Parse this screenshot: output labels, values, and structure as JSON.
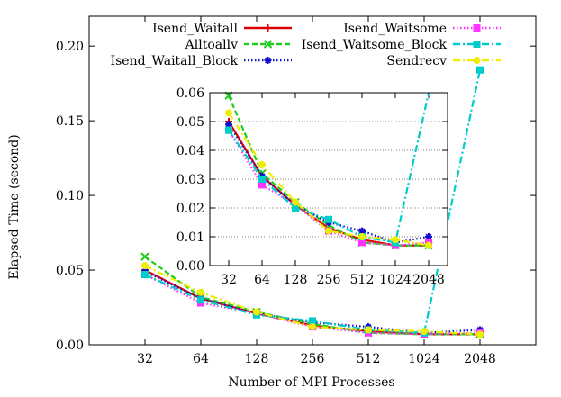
{
  "chart_data": [
    {
      "type": "line",
      "xlabel": "Number of MPI Processes",
      "ylabel": "Elapsed Time (second)",
      "x": [
        "32",
        "64",
        "128",
        "256",
        "512",
        "1024",
        "2048"
      ],
      "ylim": [
        0,
        0.22
      ],
      "yticks": [
        "0.00",
        "0.05",
        "0.10",
        "0.15",
        "0.20"
      ],
      "grid": false,
      "legend_position": "top",
      "series": [
        {
          "name": "Isend_Waitall",
          "color": "#e00000",
          "marker": "plus",
          "dash": "solid",
          "values": [
            0.05,
            0.031,
            0.021,
            0.013,
            0.009,
            0.007,
            0.007
          ]
        },
        {
          "name": "Alltoallv",
          "color": "#22cc22",
          "marker": "cross",
          "dash": "dashed",
          "values": [
            0.059,
            0.032,
            0.022,
            0.014,
            0.008,
            0.007,
            0.007
          ]
        },
        {
          "name": "Isend_Waitall_Block",
          "color": "#1010cc",
          "marker": "star",
          "dash": "dotted",
          "values": [
            0.049,
            0.031,
            0.021,
            0.015,
            0.012,
            0.008,
            0.01
          ]
        },
        {
          "name": "Isend_Waitsome",
          "color": "#ff33ff",
          "marker": "square",
          "dash": "dotted",
          "values": [
            0.047,
            0.028,
            0.021,
            0.012,
            0.008,
            0.007,
            0.008
          ]
        },
        {
          "name": "Isend_Waitsome_Block",
          "color": "#00cccc",
          "marker": "square",
          "dash": "dashdot",
          "values": [
            0.047,
            0.03,
            0.02,
            0.016,
            0.01,
            0.008,
            0.184
          ]
        },
        {
          "name": "Sendrecv",
          "color": "#eeee00",
          "marker": "circle",
          "dash": "dashdot",
          "values": [
            0.053,
            0.035,
            0.022,
            0.012,
            0.01,
            0.009,
            0.007
          ]
        }
      ]
    },
    {
      "type": "line",
      "inset": true,
      "x": [
        "32",
        "64",
        "128",
        "256",
        "512",
        "1024",
        "2048"
      ],
      "ylim": [
        0,
        0.06
      ],
      "yticks": [
        "0.00",
        "0.01",
        "0.02",
        "0.03",
        "0.04",
        "0.05",
        "0.06"
      ],
      "grid": true
    }
  ]
}
